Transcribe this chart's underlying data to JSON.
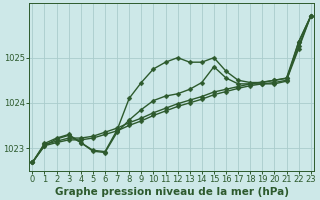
{
  "xlabel": "Graphe pression niveau de la mer (hPa)",
  "xlabel_fontsize": 7.5,
  "bg_color": "#cde8e8",
  "grid_color": "#aacccc",
  "line_color": "#2d5a2d",
  "marker": "D",
  "markersize": 2.5,
  "linewidth": 1.0,
  "ylim": [
    1022.5,
    1026.2
  ],
  "xlim": [
    -0.3,
    23.3
  ],
  "yticks": [
    1023,
    1024,
    1025
  ],
  "xticks": [
    0,
    1,
    2,
    3,
    4,
    5,
    6,
    7,
    8,
    9,
    10,
    11,
    12,
    13,
    14,
    15,
    16,
    17,
    18,
    19,
    20,
    21,
    22,
    23
  ],
  "tick_fontsize": 6.0,
  "series1": [
    1022.68,
    1023.05,
    1023.2,
    1023.28,
    1023.12,
    1022.95,
    1022.92,
    1023.4,
    1024.1,
    1024.45,
    1024.75,
    1024.9,
    1025.0,
    1024.9,
    1024.9,
    1025.0,
    1024.7,
    1024.5,
    1024.45,
    1024.45,
    1024.5,
    1024.55,
    1025.35,
    1025.92
  ],
  "series2": [
    1022.68,
    1023.1,
    1023.22,
    1023.3,
    1023.12,
    1022.93,
    1022.9,
    1023.35,
    1023.62,
    1023.85,
    1024.05,
    1024.15,
    1024.2,
    1024.3,
    1024.45,
    1024.8,
    1024.55,
    1024.42,
    1024.42,
    1024.42,
    1024.42,
    1024.48,
    1025.35,
    1025.92
  ],
  "series3": [
    1022.68,
    1023.05,
    1023.12,
    1023.18,
    1023.18,
    1023.22,
    1023.3,
    1023.38,
    1023.5,
    1023.6,
    1023.72,
    1023.82,
    1023.92,
    1024.0,
    1024.08,
    1024.18,
    1024.25,
    1024.32,
    1024.38,
    1024.42,
    1024.45,
    1024.5,
    1025.2,
    1025.92
  ],
  "series4": [
    1022.68,
    1023.08,
    1023.15,
    1023.22,
    1023.22,
    1023.26,
    1023.35,
    1023.44,
    1023.56,
    1023.66,
    1023.78,
    1023.88,
    1023.98,
    1024.06,
    1024.14,
    1024.24,
    1024.3,
    1024.36,
    1024.42,
    1024.46,
    1024.5,
    1024.54,
    1025.25,
    1025.92
  ]
}
